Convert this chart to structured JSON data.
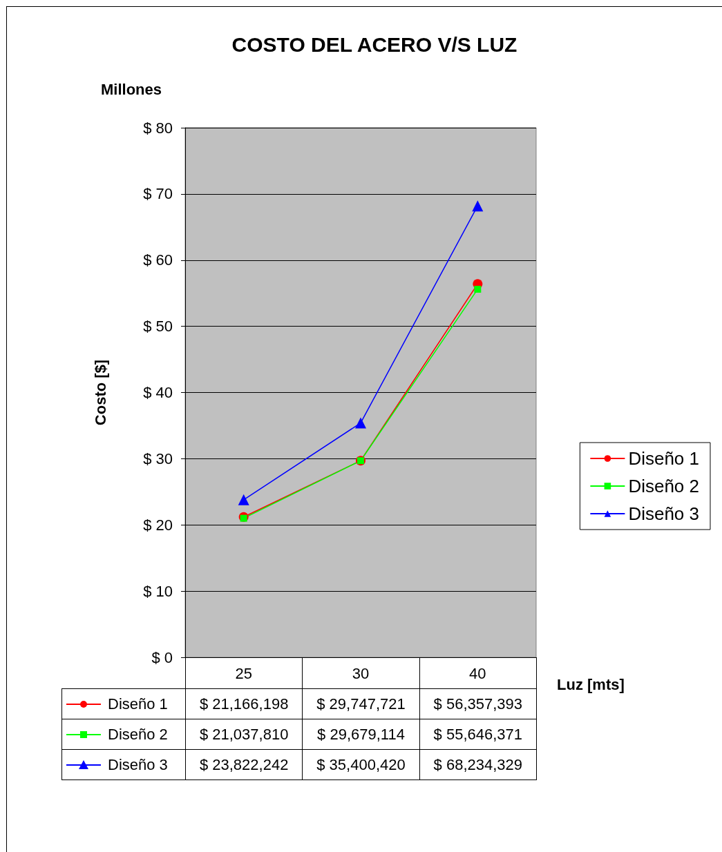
{
  "chart_data": {
    "type": "line",
    "title": "COSTO DEL ACERO V/S LUZ",
    "xlabel": "Luz [mts]",
    "ylabel": "Costo [$]",
    "annotations": [
      "Millones",
      "$ 21,166,198",
      "$ 29,747,721",
      "$ 56,357,393",
      "$ 21,037,810",
      "$ 29,679,114",
      "$ 55,646,371",
      "$ 23,822,242",
      "$ 35,400,420",
      "$ 68,234,329"
    ],
    "categories": [
      "25",
      "30",
      "40"
    ],
    "series": [
      {
        "name": "Diseño 1",
        "color": "#ff0000",
        "marker": "circle",
        "values": [
          21.2,
          29.7,
          56.4
        ]
      },
      {
        "name": "Diseño 2",
        "color": "#00ff00",
        "marker": "square",
        "values": [
          21.0,
          29.7,
          55.6
        ]
      },
      {
        "name": "Diseño 3",
        "color": "#0000ff",
        "marker": "triangle",
        "values": [
          23.8,
          35.4,
          68.2
        ]
      }
    ],
    "ylim": [
      0,
      80
    ],
    "yticks": [
      {
        "value": 0,
        "label": "$ 0"
      },
      {
        "value": 10,
        "label": "$ 10"
      },
      {
        "value": 20,
        "label": "$ 20"
      },
      {
        "value": 30,
        "label": "$ 30"
      },
      {
        "value": 40,
        "label": "$ 40"
      },
      {
        "value": 50,
        "label": "$ 50"
      },
      {
        "value": 60,
        "label": "$ 60"
      },
      {
        "value": 70,
        "label": "$ 70"
      },
      {
        "value": 80,
        "label": "$ 80"
      }
    ],
    "grid": "y",
    "legend": "right",
    "line_style": "solid"
  }
}
